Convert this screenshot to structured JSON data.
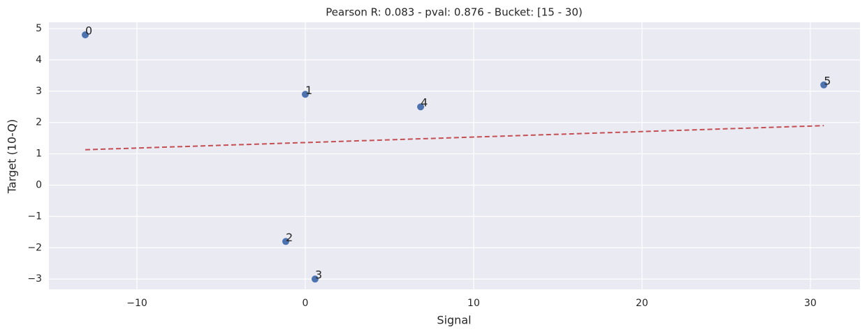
{
  "chart_data": {
    "type": "scatter",
    "title": "Pearson R: 0.083 - pval: 0.876 - Bucket: [15 - 30)",
    "x_label": "Signal",
    "y_label": "Target (10-Q)",
    "points": {
      "x": [
        -13.07,
        0,
        -1.16,
        0.58,
        6.85,
        30.8
      ],
      "y": [
        4.8,
        2.9,
        -1.8,
        -3.0,
        2.5,
        3.2
      ],
      "labels": [
        "0",
        "1",
        "2",
        "3",
        "4",
        "5"
      ],
      "color": "#4c72b0"
    },
    "fit": {
      "x": [
        -13.07,
        30.8
      ],
      "y": [
        1.13,
        1.9
      ],
      "color": "#c44e52",
      "dashed": true
    },
    "xlim": [
      -15.23,
      32.95
    ],
    "xticks": [
      {
        "value": -10,
        "label": "−10"
      },
      0,
      10,
      20,
      30
    ],
    "ylim": [
      -3.33,
      5.2
    ],
    "yticks": [
      {
        "value": -3,
        "label": "−3"
      },
      {
        "value": -2,
        "label": "−2"
      },
      {
        "value": -1,
        "label": "−1"
      },
      0,
      1,
      2,
      3,
      4,
      5
    ],
    "grid": true
  }
}
